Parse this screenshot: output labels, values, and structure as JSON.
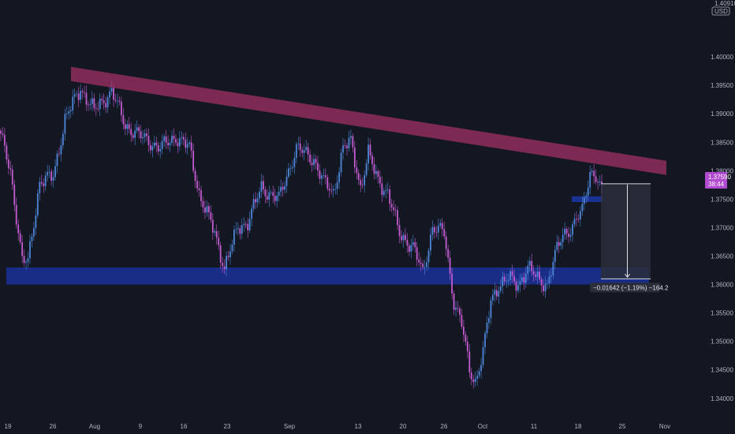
{
  "chart_data": {
    "type": "candlestick",
    "currency": "USD",
    "y_axis_top_label": "1.40910",
    "ylim": [
      1.3365,
      1.41
    ],
    "y_ticks": [
      "1.40000",
      "1.39500",
      "1.39000",
      "1.38500",
      "1.38000",
      "1.37500",
      "1.37000",
      "1.36500",
      "1.36000",
      "1.35500",
      "1.35000",
      "1.34500",
      "1.34000"
    ],
    "x_ticks": [
      "19",
      "26",
      "Aug",
      "9",
      "16",
      "23",
      "Sep",
      "13",
      "20",
      "26",
      "Oct",
      "11",
      "18",
      "25",
      "Nov"
    ],
    "anchors": [
      {
        "i": 0,
        "c": 1.386
      },
      {
        "i": 5,
        "c": 1.38
      },
      {
        "i": 11,
        "c": 1.364
      },
      {
        "i": 14,
        "c": 1.364
      },
      {
        "i": 20,
        "c": 1.378
      },
      {
        "i": 27,
        "c": 1.379
      },
      {
        "i": 33,
        "c": 1.389
      },
      {
        "i": 41,
        "c": 1.3945
      },
      {
        "i": 48,
        "c": 1.3905
      },
      {
        "i": 57,
        "c": 1.394
      },
      {
        "i": 64,
        "c": 1.388
      },
      {
        "i": 72,
        "c": 1.386
      },
      {
        "i": 82,
        "c": 1.384
      },
      {
        "i": 90,
        "c": 1.386
      },
      {
        "i": 97,
        "c": 1.384
      },
      {
        "i": 102,
        "c": 1.376
      },
      {
        "i": 110,
        "c": 1.369
      },
      {
        "i": 115,
        "c": 1.363
      },
      {
        "i": 122,
        "c": 1.37
      },
      {
        "i": 127,
        "c": 1.371
      },
      {
        "i": 134,
        "c": 1.377
      },
      {
        "i": 143,
        "c": 1.375
      },
      {
        "i": 152,
        "c": 1.384
      },
      {
        "i": 161,
        "c": 1.382
      },
      {
        "i": 166,
        "c": 1.378
      },
      {
        "i": 171,
        "c": 1.376
      },
      {
        "i": 176,
        "c": 1.384
      },
      {
        "i": 180,
        "c": 1.385
      },
      {
        "i": 185,
        "c": 1.377
      },
      {
        "i": 189,
        "c": 1.383
      },
      {
        "i": 193,
        "c": 1.379
      },
      {
        "i": 199,
        "c": 1.376
      },
      {
        "i": 205,
        "c": 1.369
      },
      {
        "i": 212,
        "c": 1.3665
      },
      {
        "i": 217,
        "c": 1.362
      },
      {
        "i": 222,
        "c": 1.37
      },
      {
        "i": 228,
        "c": 1.369
      },
      {
        "i": 233,
        "c": 1.357
      },
      {
        "i": 237,
        "c": 1.353
      },
      {
        "i": 241,
        "c": 1.345
      },
      {
        "i": 244,
        "c": 1.343
      },
      {
        "i": 248,
        "c": 1.348
      },
      {
        "i": 252,
        "c": 1.357
      },
      {
        "i": 256,
        "c": 1.36
      },
      {
        "i": 261,
        "c": 1.361
      },
      {
        "i": 266,
        "c": 1.36
      },
      {
        "i": 271,
        "c": 1.363
      },
      {
        "i": 276,
        "c": 1.361
      },
      {
        "i": 281,
        "c": 1.36
      },
      {
        "i": 285,
        "c": 1.365
      },
      {
        "i": 289,
        "c": 1.369
      },
      {
        "i": 294,
        "c": 1.37
      },
      {
        "i": 299,
        "c": 1.373
      },
      {
        "i": 303,
        "c": 1.38
      },
      {
        "i": 306,
        "c": 1.379
      },
      {
        "i": 309,
        "c": 1.3759
      }
    ],
    "resistance_line": {
      "start_price": 1.397,
      "end_price": 1.3805
    },
    "support_zone": {
      "upper": 1.363,
      "lower": 1.36
    },
    "small_zone": {
      "upper": 1.3755,
      "lower": 1.3745
    },
    "last_price": "1.37590",
    "countdown": "38:44",
    "measure": {
      "top": 1.3777,
      "bottom": 1.361,
      "label": "−0.01642 (−1.19%) −164.2"
    },
    "colors": {
      "background": "#131722",
      "up": "#4e86d8",
      "down": "#c45bd0",
      "resistance": "#b5326e",
      "support": "#1c36a8",
      "last_price_bg": "#b04ad0"
    }
  }
}
